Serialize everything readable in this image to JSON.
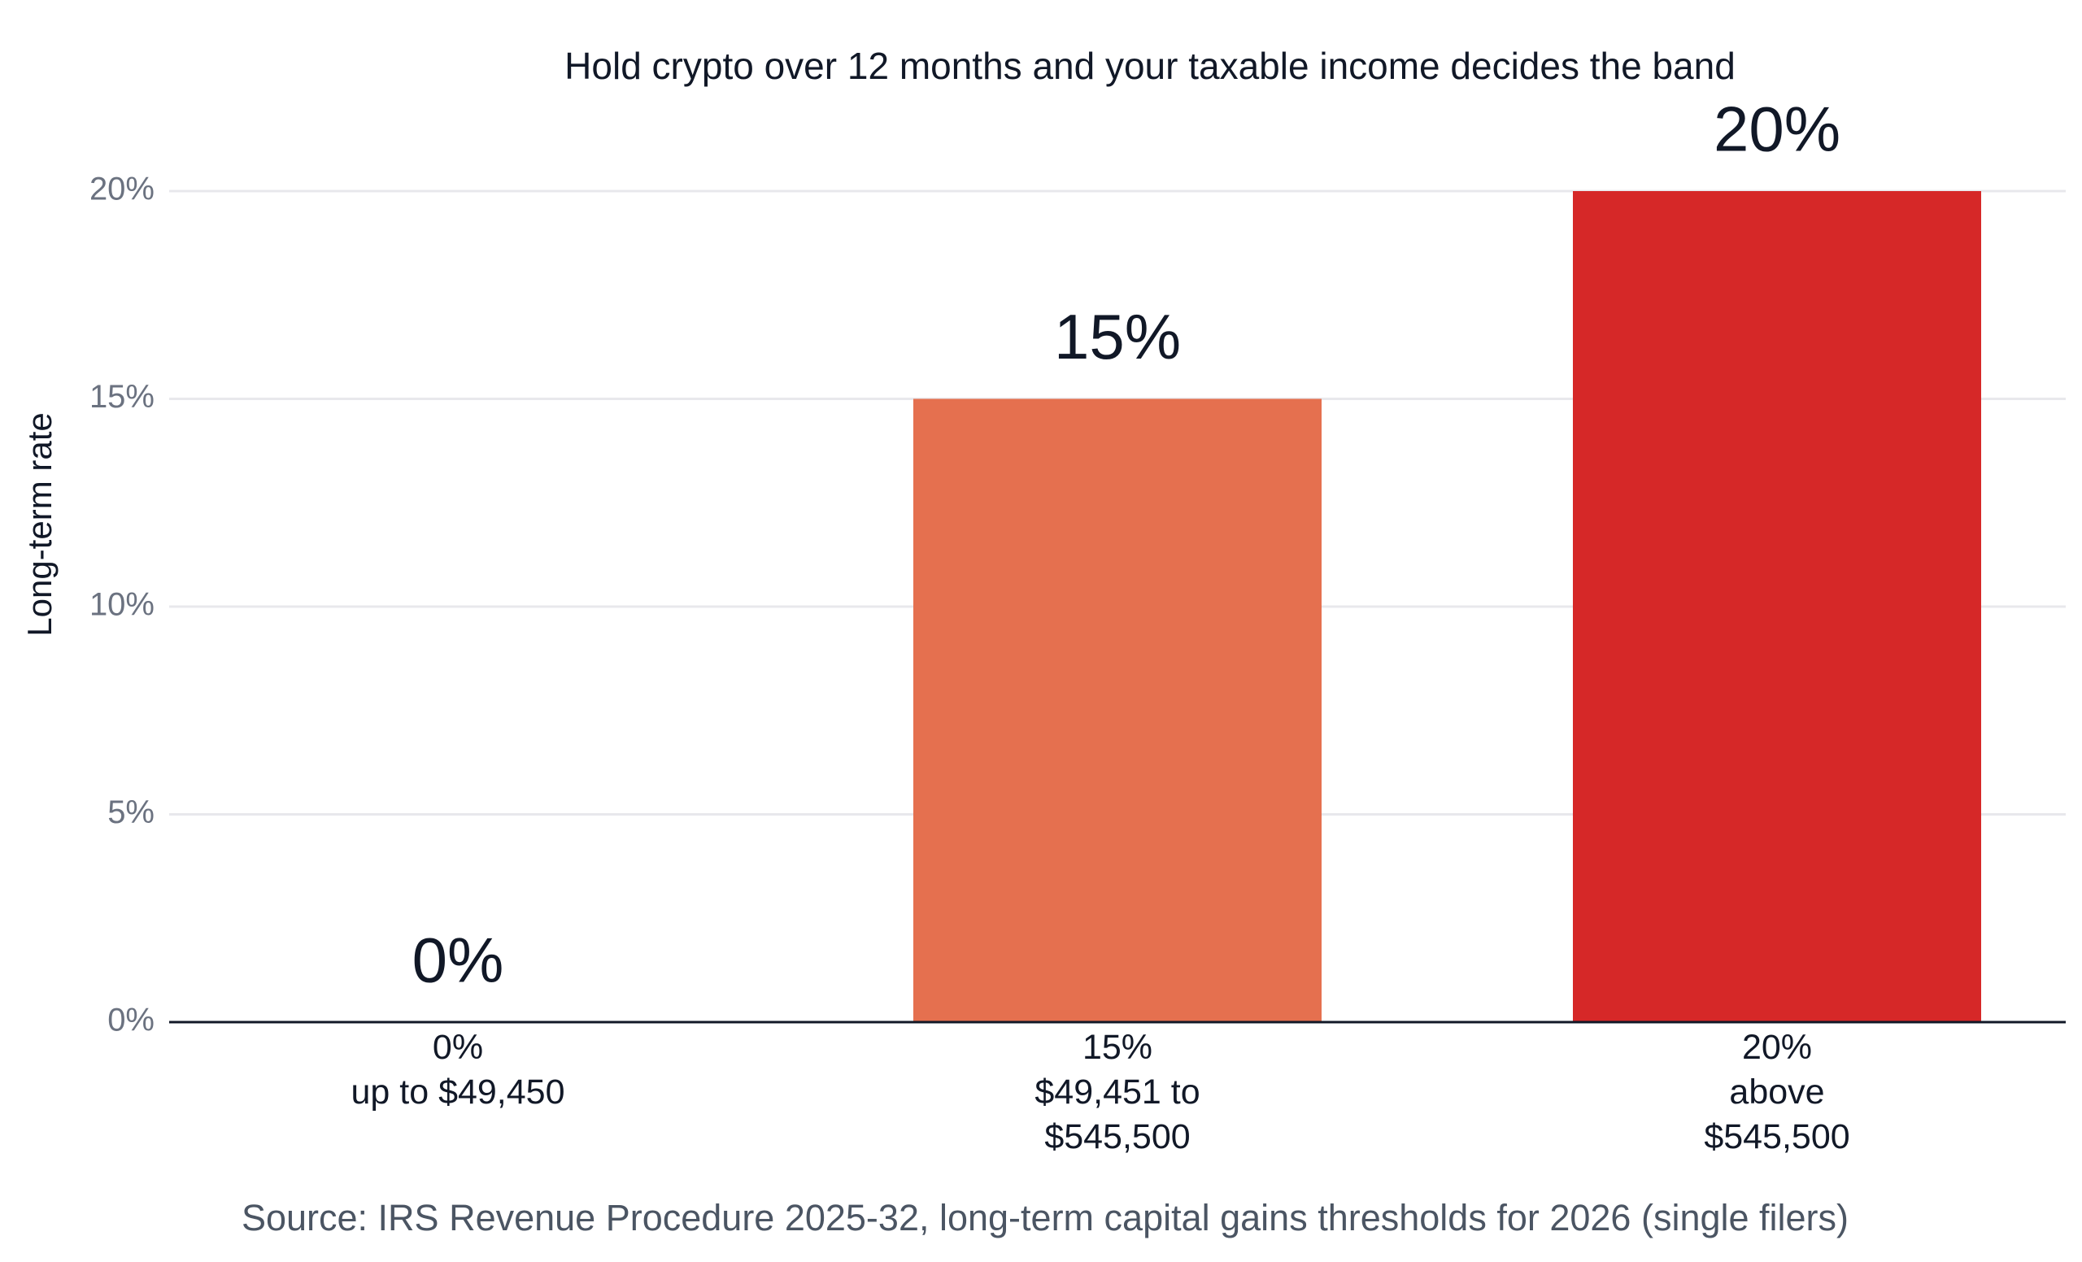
{
  "chart_data": {
    "type": "bar",
    "title": "Hold crypto over 12 months and your taxable income decides the band",
    "y_label": "Long-term rate",
    "source": "Source: IRS Revenue Procedure 2025-32, long-term capital gains thresholds for 2026 (single filers)",
    "categories": [
      [
        "0%",
        "up to $49,450"
      ],
      [
        "15%",
        "$49,451 to",
        "$545,500"
      ],
      [
        "20%",
        "above",
        "$545,500"
      ]
    ],
    "values": [
      0,
      15,
      20
    ],
    "value_labels": [
      "0%",
      "15%",
      "20%"
    ],
    "colors": [
      "#F4A582",
      "#E5704F",
      "#D62828"
    ],
    "ylim": [
      0,
      20
    ],
    "yticks": [
      {
        "value": 0,
        "label": "0%"
      },
      {
        "value": 5,
        "label": "5%"
      },
      {
        "value": 10,
        "label": "10%"
      },
      {
        "value": 15,
        "label": "15%"
      },
      {
        "value": 20,
        "label": "20%"
      }
    ],
    "grid": true
  }
}
